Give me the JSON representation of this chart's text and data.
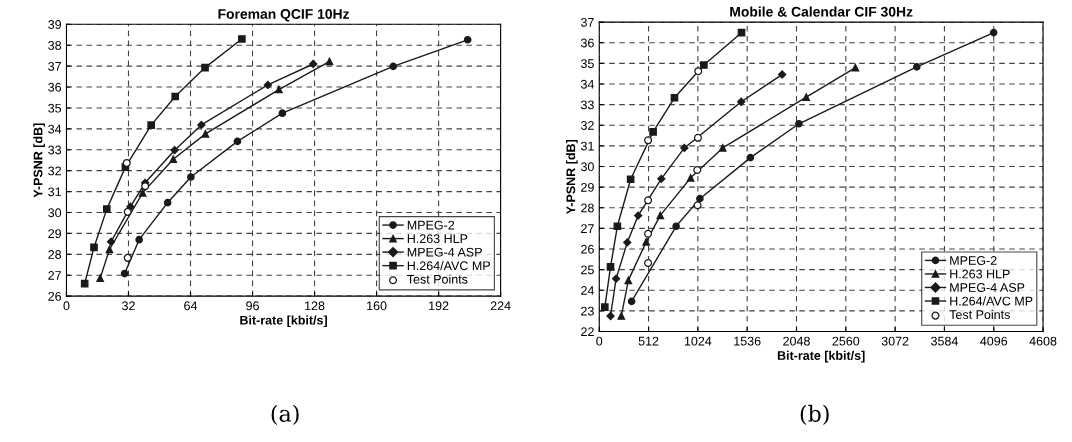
{
  "chart_data": [
    {
      "type": "line",
      "title": "Foreman QCIF 10Hz",
      "xlabel": "Bit-rate [kbit/s]",
      "ylabel": "Y-PSNR [dB]",
      "annotations": [
        "(a)"
      ],
      "xlim": [
        0,
        224
      ],
      "xticks": [
        0,
        32,
        64,
        96,
        128,
        160,
        192,
        224
      ],
      "ylim": [
        26,
        39
      ],
      "yticks": [
        26,
        27,
        28,
        29,
        30,
        31,
        32,
        33,
        34,
        35,
        36,
        37,
        38,
        39
      ],
      "grid": true,
      "legend": "bottom right",
      "line_style": "solid",
      "series": [
        {
          "name": "MPEG-2",
          "color": "#1a1a1a",
          "marker": "circle",
          "x": [
            30.0,
            37.5,
            52.2,
            64.2,
            88.2,
            111.4,
            168.6,
            207.0
          ],
          "values": [
            27.08,
            28.7,
            30.47,
            31.7,
            33.4,
            34.75,
            36.99,
            38.26
          ]
        },
        {
          "name": "H.263 HLP",
          "color": "#1a1a1a",
          "marker": "triangle",
          "x": [
            17.4,
            22.2,
            39.3,
            55.1,
            71.7,
            109.6,
            135.7
          ],
          "values": [
            26.86,
            28.23,
            30.94,
            32.55,
            33.76,
            35.88,
            37.22
          ]
        },
        {
          "name": "MPEG-4 ASP",
          "color": "#1a1a1a",
          "marker": "diamond",
          "x": [
            23.0,
            33.0,
            40.6,
            55.8,
            69.6,
            103.9,
            127.3
          ],
          "values": [
            28.6,
            30.28,
            31.42,
            32.98,
            34.19,
            36.1,
            37.1
          ]
        },
        {
          "name": "H.264/AVC MP",
          "color": "#1a1a1a",
          "marker": "square",
          "x": [
            9.4,
            14.2,
            20.8,
            30.4,
            43.7,
            56.1,
            71.5,
            90.5
          ],
          "values": [
            26.6,
            28.33,
            30.16,
            32.17,
            34.18,
            35.55,
            36.93,
            38.3
          ]
        },
        {
          "name": "Test Points",
          "type": "scatter",
          "color": "#ffffff",
          "marker": "circle",
          "x": [
            31.1,
            31.6,
            31.6,
            40.6
          ],
          "values": [
            32.37,
            30.03,
            27.83,
            31.26
          ]
        }
      ]
    },
    {
      "type": "line",
      "title": "Mobile & Calendar CIF 30Hz",
      "xlabel": "Bit-rate [kbit/s]",
      "ylabel": "Y-PSNR [dB]",
      "annotations": [
        "(b)"
      ],
      "xlim": [
        0,
        4608
      ],
      "xticks": [
        0,
        512,
        1024,
        1536,
        2048,
        2560,
        3072,
        3584,
        4096,
        4608
      ],
      "ylim": [
        22,
        37
      ],
      "yticks": [
        22,
        23,
        24,
        25,
        26,
        27,
        28,
        29,
        30,
        31,
        32,
        33,
        34,
        35,
        36,
        37
      ],
      "grid": true,
      "legend": "bottom right",
      "line_style": "solid",
      "series": [
        {
          "name": "MPEG-2",
          "color": "#1a1a1a",
          "marker": "circle",
          "x": [
            336,
            798,
            1045,
            1570,
            2073,
            3297,
            4095
          ],
          "values": [
            23.46,
            27.1,
            28.44,
            30.43,
            32.07,
            34.83,
            36.49
          ]
        },
        {
          "name": "H.263 HLP",
          "color": "#1a1a1a",
          "marker": "triangle",
          "x": [
            229,
            302,
            487,
            634,
            949,
            1282,
            2149,
            2659
          ],
          "values": [
            22.75,
            24.48,
            26.34,
            27.63,
            29.45,
            30.9,
            33.36,
            34.79
          ]
        },
        {
          "name": "MPEG-4 ASP",
          "color": "#1a1a1a",
          "marker": "diamond",
          "x": [
            117,
            175,
            291,
            404,
            644,
            884,
            1474,
            1899
          ],
          "values": [
            22.75,
            24.56,
            26.32,
            27.62,
            29.4,
            30.9,
            33.14,
            34.46
          ]
        },
        {
          "name": "H.264/AVC MP",
          "color": "#1a1a1a",
          "marker": "square",
          "x": [
            58,
            117,
            188,
            326,
            559,
            781,
            1086,
            1477
          ],
          "values": [
            23.18,
            25.13,
            27.1,
            29.38,
            31.68,
            33.33,
            34.92,
            36.49
          ]
        },
        {
          "name": "Test Points",
          "type": "scatter",
          "color": "#ffffff",
          "marker": "circle",
          "x": [
            507,
            1028,
            507,
            1025,
            507,
            1018,
            507,
            1021
          ],
          "values": [
            31.27,
            34.62,
            28.36,
            31.39,
            26.74,
            29.83,
            25.32,
            28.12
          ]
        }
      ]
    }
  ]
}
